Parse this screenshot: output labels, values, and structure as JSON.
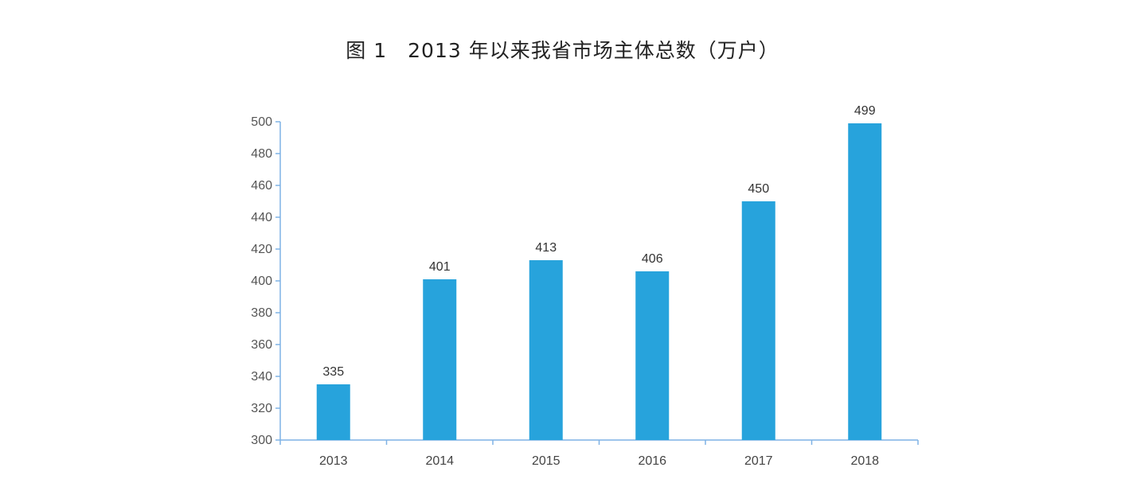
{
  "chart_data": {
    "type": "bar",
    "title": "图 1　2013 年以来我省市场主体总数（万户）",
    "categories": [
      "2013",
      "2014",
      "2015",
      "2016",
      "2017",
      "2018"
    ],
    "values": [
      335,
      401,
      413,
      406,
      450,
      499
    ],
    "data_labels": [
      "335",
      "401",
      "413",
      "406",
      "450",
      "499"
    ],
    "xlabel": "",
    "ylabel": "",
    "ylim": [
      300,
      500
    ],
    "yticks": [
      300,
      320,
      340,
      360,
      380,
      400,
      420,
      440,
      460,
      480,
      500
    ],
    "grid": false,
    "legend": "none",
    "bar_color": "#27A3DC",
    "axis_color": "#7FB2E5"
  }
}
